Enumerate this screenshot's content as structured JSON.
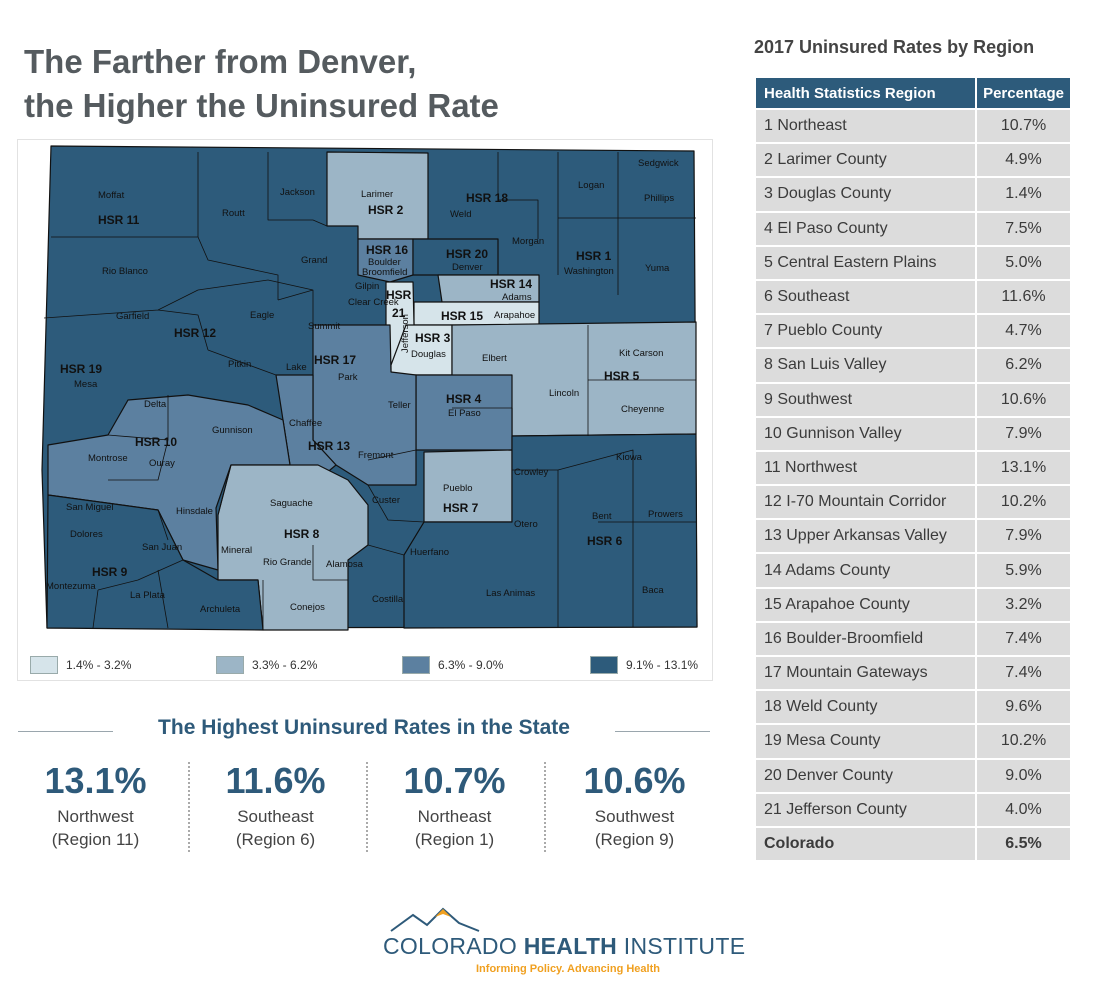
{
  "title": {
    "line1": "The Farther from Denver,",
    "line2": "the Higher the Uninsured Rate"
  },
  "colors": {
    "tier1": "#d6e4ea",
    "tier2": "#9cb5c6",
    "tier3": "#5c80a0",
    "tier4": "#2d5b7b",
    "accent": "#2e5a7a",
    "logo_orange": "#f0a020"
  },
  "map": {
    "counties": {
      "moffat": "Moffat",
      "routt": "Routt",
      "jackson": "Jackson",
      "larimer": "Larimer",
      "weld": "Weld",
      "logan": "Logan",
      "sedgwick": "Sedgwick",
      "phillips": "Phillips",
      "morgan": "Morgan",
      "washington": "Washington",
      "yuma": "Yuma",
      "rio_blanco": "Rio Blanco",
      "garfield": "Garfield",
      "grand": "Grand",
      "boulder": "Boulder",
      "broomfield": "Broomfield",
      "gilpin": "Gilpin",
      "denver": "Denver",
      "adams": "Adams",
      "arapahoe": "Arapahoe",
      "jefferson": "Jefferson",
      "clear_creek": "Clear Creek",
      "eagle": "Eagle",
      "summit": "Summit",
      "pitkin": "Pitkin",
      "lake": "Lake",
      "park": "Park",
      "douglas": "Douglas",
      "elbert": "Elbert",
      "kit_carson": "Kit Carson",
      "lincoln": "Lincoln",
      "cheyenne": "Cheyenne",
      "mesa": "Mesa",
      "delta": "Delta",
      "gunnison": "Gunnison",
      "teller": "Teller",
      "el_paso": "El Paso",
      "chaffee": "Chaffee",
      "montrose": "Montrose",
      "fremont": "Fremont",
      "kiowa": "Kiowa",
      "crowley": "Crowley",
      "ouray": "Ouray",
      "saguache": "Saguache",
      "custer": "Custer",
      "pueblo": "Pueblo",
      "san_miguel": "San Miguel",
      "hinsdale": "Hinsdale",
      "otero": "Otero",
      "bent": "Bent",
      "prowers": "Prowers",
      "dolores": "Dolores",
      "san_juan": "San Juan",
      "mineral": "Mineral",
      "rio_grande": "Rio Grande",
      "alamosa": "Alamosa",
      "huerfano": "Huerfano",
      "montezuma": "Montezuma",
      "la_plata": "La Plata",
      "archuleta": "Archuleta",
      "conejos": "Conejos",
      "costilla": "Costilla",
      "las_animas": "Las Animas",
      "baca": "Baca"
    },
    "regions": {
      "hsr1": "HSR 1",
      "hsr2": "HSR 2",
      "hsr3": "HSR 3",
      "hsr4": "HSR 4",
      "hsr5": "HSR 5",
      "hsr6": "HSR 6",
      "hsr7": "HSR 7",
      "hsr8": "HSR 8",
      "hsr9": "HSR 9",
      "hsr10": "HSR 10",
      "hsr11": "HSR 11",
      "hsr12": "HSR 12",
      "hsr13": "HSR 13",
      "hsr14": "HSR 14",
      "hsr15": "HSR 15",
      "hsr16": "HSR 16",
      "hsr17": "HSR 17",
      "hsr18": "HSR 18",
      "hsr19": "HSR 19",
      "hsr20": "HSR 20",
      "hsr21_a": "HSR",
      "hsr21_b": "21"
    },
    "legend": [
      {
        "label": "1.4% - 3.2%"
      },
      {
        "label": "3.3% - 6.2%"
      },
      {
        "label": "6.3% - 9.0%"
      },
      {
        "label": "9.1% - 13.1%"
      }
    ]
  },
  "highest": {
    "title": "The Highest Uninsured Rates in the State",
    "items": [
      {
        "value": "13.1%",
        "region": "Northwest",
        "number": "(Region 11)"
      },
      {
        "value": "11.6%",
        "region": "Southeast",
        "number": "(Region 6)"
      },
      {
        "value": "10.7%",
        "region": "Northeast",
        "number": "(Region 1)"
      },
      {
        "value": "10.6%",
        "region": "Southwest",
        "number": "(Region 9)"
      }
    ]
  },
  "table": {
    "title": "2017 Uninsured Rates by Region",
    "headers": {
      "region": "Health Statistics Region",
      "pct": "Percentage"
    },
    "rows": [
      {
        "region": "1 Northeast",
        "pct": "10.7%"
      },
      {
        "region": "2 Larimer County",
        "pct": "4.9%"
      },
      {
        "region": "3 Douglas County",
        "pct": "1.4%"
      },
      {
        "region": "4 El Paso County",
        "pct": "7.5%"
      },
      {
        "region": "5 Central Eastern Plains",
        "pct": "5.0%"
      },
      {
        "region": "6 Southeast",
        "pct": "11.6%"
      },
      {
        "region": "7 Pueblo County",
        "pct": "4.7%"
      },
      {
        "region": "8 San Luis Valley",
        "pct": "6.2%"
      },
      {
        "region": "9 Southwest",
        "pct": "10.6%"
      },
      {
        "region": "10 Gunnison Valley",
        "pct": "7.9%"
      },
      {
        "region": "11  Northwest",
        "pct": "13.1%"
      },
      {
        "region": "12 I-70 Mountain Corridor",
        "pct": "10.2%"
      },
      {
        "region": "13 Upper Arkansas Valley",
        "pct": "7.9%"
      },
      {
        "region": "14 Adams County",
        "pct": "5.9%"
      },
      {
        "region": "15 Arapahoe County",
        "pct": "3.2%"
      },
      {
        "region": "16 Boulder-Broomfield",
        "pct": "7.4%"
      },
      {
        "region": "17 Mountain Gateways",
        "pct": "7.4%"
      },
      {
        "region": "18 Weld County",
        "pct": "9.6%"
      },
      {
        "region": "19 Mesa County",
        "pct": "10.2%"
      },
      {
        "region": "20 Denver County",
        "pct": "9.0%"
      },
      {
        "region": "21 Jefferson County",
        "pct": "4.0%"
      }
    ],
    "total": {
      "region": "Colorado",
      "pct": "6.5%"
    }
  },
  "logo": {
    "name_light": "COLORADO ",
    "name_bold": "HEALTH",
    "name_end": " INSTITUTE",
    "tagline": "Informing Policy. Advancing Health"
  }
}
